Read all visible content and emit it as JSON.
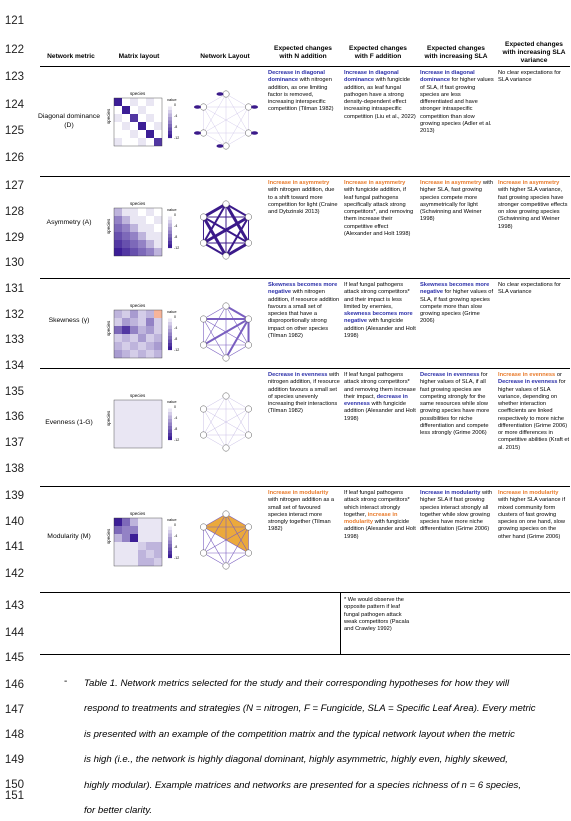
{
  "line_numbers": [
    "121",
    "122",
    "123",
    "124",
    "125",
    "126",
    "127",
    "128",
    "129",
    "130",
    "131",
    "132",
    "133",
    "134",
    "135",
    "136",
    "137",
    "138",
    "139",
    "140",
    "141",
    "142",
    "143",
    "144",
    "145",
    "146",
    "147",
    "148",
    "149",
    "150",
    "151"
  ],
  "headers": {
    "metric": "Network metric",
    "matrix": "Matrix layout",
    "network": "Network Layout",
    "n": "Expected changes with N addition",
    "f": "Expected changes with F addition",
    "sla": "Expected changes with increasing SLA",
    "slavar": "Expected changes with increasing SLA variance"
  },
  "matrix_labels": {
    "species": "species",
    "value": "value"
  },
  "legend_ticks": [
    "0",
    "-4",
    "-8",
    "-12"
  ],
  "rows": [
    {
      "metric": "Diagonal dominance (D)",
      "n": [
        {
          "t": "Decrease in diagonal dominance",
          "c": "blue"
        },
        {
          "t": " with nitrogen addition, as one limiting factor is removed, increasing interspecific competition (Tilman 1982)"
        }
      ],
      "f": [
        {
          "t": "Increase in diagonal dominance",
          "c": "blue"
        },
        {
          "t": " with fungicide addition, as leaf fungal pathogen have a strong density-dependent effect increasing intraspecific competition (Liu et al., 2022)"
        }
      ],
      "sla": [
        {
          "t": "Increase in diagonal dominance",
          "c": "blue"
        },
        {
          "t": " for higher values of SLA, if fast growing species are less differentiated and have stronger intraspecific competition than slow growing species (Adler et al. 2013)"
        }
      ],
      "slavar": [
        {
          "t": "No clear expectations for SLA variance"
        }
      ]
    },
    {
      "metric": "Asymmetry (A)",
      "n": [
        {
          "t": "Increase in asymmetry",
          "c": "orange"
        },
        {
          "t": " with nitrogen addition, due to a shift toward more competition for light (Craine and Dybzinski 2013)"
        }
      ],
      "f": [
        {
          "t": "Increase in asymmetry",
          "c": "orange"
        },
        {
          "t": " with fungicide addition, if leaf fungal pathogens specifically attack strong competitors*, and removing them increase their competitive effect (Alexander and Holt 1998)"
        }
      ],
      "sla": [
        {
          "t": "Increase in asymmetry",
          "c": "orange"
        },
        {
          "t": " with higher SLA, fast growing species compete more asymmetrically for light (Schwinning and Weiner 1998)"
        }
      ],
      "slavar": [
        {
          "t": "Increase in asymmetry",
          "c": "orange"
        },
        {
          "t": " with higher SLA variance, fast growing species have stronger competitive effects on slow growing species (Schwinning and Weiner 1998)"
        }
      ]
    },
    {
      "metric": "Skewness (γ)",
      "n": [
        {
          "t": "Skewness becomes more negative",
          "c": "blue"
        },
        {
          "t": " with nitrogen addition, if resource addition favours a small set of species that have a disproportionally strong impact on other species (Tilman 1982)"
        }
      ],
      "f": [
        {
          "t": "If leaf fungal pathogens attack strong competitors* and their impact is less limited by enemies, "
        },
        {
          "t": "skewness becomes more negative",
          "c": "blue"
        },
        {
          "t": " with fungicide addition (Alexander and Holt 1998)"
        }
      ],
      "sla": [
        {
          "t": "Skewness becomes more negative",
          "c": "blue"
        },
        {
          "t": " for higher values of SLA, if fast growing species compete more than slow growing species (Grime 2006)"
        }
      ],
      "slavar": [
        {
          "t": "No clear expectations for SLA variance"
        }
      ]
    },
    {
      "metric": "Evenness (1-G)",
      "n": [
        {
          "t": "Decrease in evenness",
          "c": "blue"
        },
        {
          "t": " with nitrogen addition, if resource addition favours a small set of species unevenly increasing their interactions (Tilman 1982)"
        }
      ],
      "f": [
        {
          "t": "If leaf fungal pathogens attack strong competitors* and removing them increase their impact, "
        },
        {
          "t": "decrease in evenness",
          "c": "blue"
        },
        {
          "t": " with fungicide addition (Alexander and Holt 1998)"
        }
      ],
      "sla": [
        {
          "t": "Decrease in evenness",
          "c": "blue"
        },
        {
          "t": " for higher values of SLA, if all fast growing species are competing strongly for the same resources while slow growing species have more possibilities for niche differentiation and compete less strongly (Grime 2006)"
        }
      ],
      "slavar": [
        {
          "t": "Increase in evenness",
          "c": "orange"
        },
        {
          "t": " or "
        },
        {
          "t": "Decrease in evenness",
          "c": "blue"
        },
        {
          "t": " for higher values of SLA variance, depending on whether interaction coefficients are linked respectively to more niche differentiation (Grime 2006) or more differences in competitive abilities (Kraft et al. 2015)"
        }
      ]
    },
    {
      "metric": "Modularity (M)",
      "n": [
        {
          "t": "Increase in modularity",
          "c": "orange"
        },
        {
          "t": " with nitrogen addition as a small set of favoured species interact more strongly together (Tilman 1982)"
        }
      ],
      "f": [
        {
          "t": "If leaf fungal pathogens attack strong competitors* which interact strongly together, "
        },
        {
          "t": "increase in modularity",
          "c": "orange"
        },
        {
          "t": " with fungicide addition (Alexander and Holt 1998)"
        }
      ],
      "sla": [
        {
          "t": "Increase in modularity",
          "c": "blue"
        },
        {
          "t": " with higher SLA if fast growing species interact strongly all together while slow growing species have more niche differentiation (Grime 2006)"
        }
      ],
      "slavar": [
        {
          "t": "Increase in modularity",
          "c": "orange"
        },
        {
          "t": " with higher SLA variance if mixed community form clusters of fast growing species on one hand, slow growing species on the other hand (Grime 2006)"
        }
      ]
    }
  ],
  "footnote": "* We would observe the opposite pattern if leaf fungal pathogen attack weak competitors (Pacala and Crawley 1992)",
  "caption_dash": "-",
  "caption_lines": [
    "Table 1. Network metrics selected for the study and their corresponding hypotheses for how they will",
    "respond to treatments and strategies (N = nitrogen, F = Fungicide, SLA = Specific Leaf Area). Every metric",
    "is presented with an example of the competition matrix and the typical network layout when the metric",
    "is high (i.e., the network is highly diagonal dominant, highly asymmetric, highly even, highly skewed,",
    "highly modular). Example matrices and networks are presented for a species richness of n = 6 species,",
    "for better clarity."
  ],
  "matrices": [
    [
      [
        9,
        0,
        1,
        0,
        1,
        0
      ],
      [
        0,
        9,
        0,
        1,
        0,
        0
      ],
      [
        1,
        0,
        8,
        0,
        1,
        0
      ],
      [
        0,
        1,
        0,
        9,
        0,
        1
      ],
      [
        0,
        0,
        1,
        0,
        9,
        0
      ],
      [
        1,
        0,
        0,
        1,
        0,
        8
      ]
    ],
    [
      [
        3,
        1,
        1,
        0,
        1,
        0
      ],
      [
        5,
        3,
        1,
        1,
        0,
        1
      ],
      [
        6,
        5,
        3,
        1,
        1,
        0
      ],
      [
        7,
        6,
        5,
        3,
        1,
        1
      ],
      [
        8,
        7,
        6,
        5,
        3,
        1
      ],
      [
        9,
        8,
        7,
        6,
        5,
        3
      ]
    ],
    [
      [
        3,
        2,
        4,
        2,
        3,
        -2
      ],
      [
        2,
        4,
        3,
        2,
        5,
        2
      ],
      [
        6,
        8,
        5,
        3,
        4,
        2
      ],
      [
        2,
        3,
        2,
        4,
        2,
        3
      ],
      [
        3,
        2,
        3,
        2,
        3,
        4
      ],
      [
        4,
        3,
        2,
        3,
        2,
        3
      ]
    ],
    [
      [
        1,
        1,
        1,
        1,
        1,
        1
      ],
      [
        1,
        1,
        1,
        1,
        1,
        1
      ],
      [
        1,
        1,
        1,
        1,
        1,
        1
      ],
      [
        1,
        1,
        1,
        1,
        1,
        1
      ],
      [
        1,
        1,
        1,
        1,
        1,
        1
      ],
      [
        1,
        1,
        1,
        1,
        1,
        1
      ]
    ],
    [
      [
        9,
        6,
        3,
        1,
        1,
        1
      ],
      [
        6,
        5,
        5,
        1,
        1,
        1
      ],
      [
        3,
        5,
        9,
        1,
        1,
        1
      ],
      [
        1,
        1,
        1,
        2,
        3,
        3
      ],
      [
        1,
        1,
        1,
        3,
        2,
        3
      ],
      [
        1,
        1,
        1,
        3,
        3,
        2
      ]
    ]
  ],
  "networks": [
    {
      "type": "diag"
    },
    {
      "type": "asym"
    },
    {
      "type": "skew"
    },
    {
      "type": "even"
    },
    {
      "type": "mod"
    }
  ],
  "colors": {
    "blue": "#2b2fa8",
    "orange": "#e87a2a",
    "purple_dark": "#3b1a8a",
    "purple_mid": "#7a5fc0",
    "purple_light": "#c9bfe6",
    "module": "#e89a1a"
  }
}
